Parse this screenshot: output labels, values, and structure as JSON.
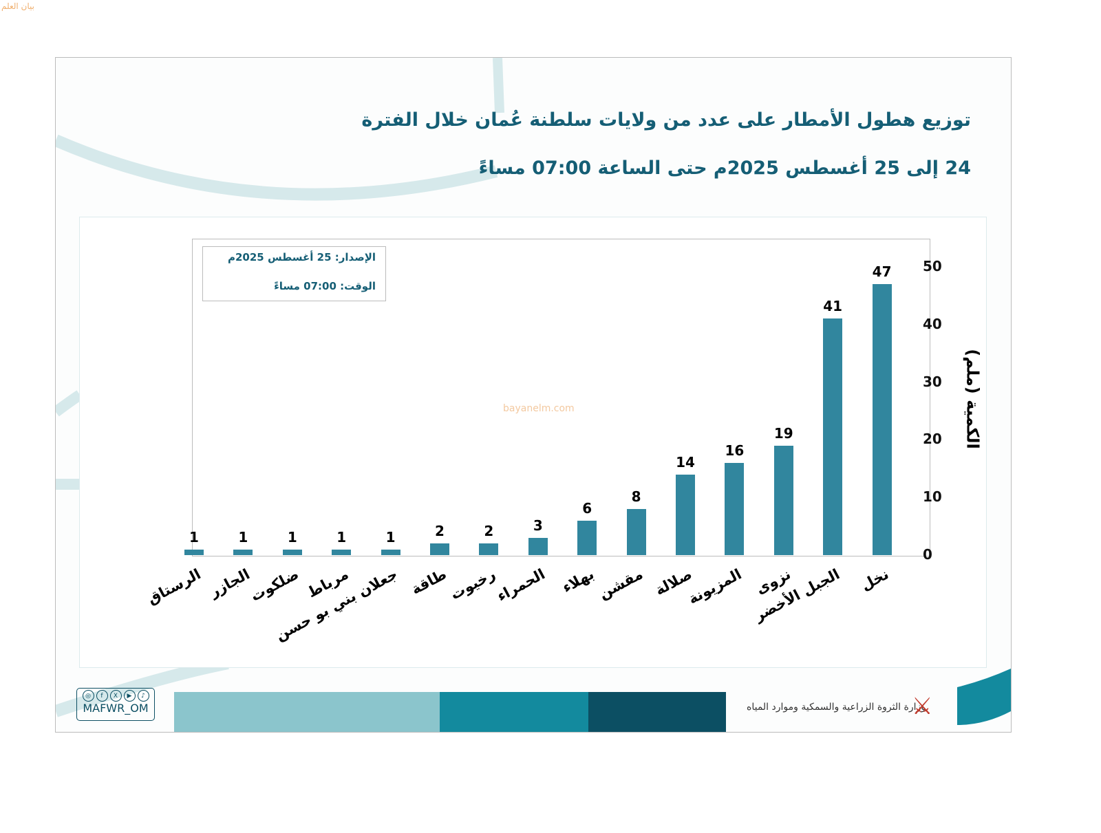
{
  "watermark": "bayanelm.com",
  "logo_text": "بيان العلم",
  "title_line1": "توزيع هطول الأمطار على عدد من ولايات سلطنة عُمان خلال الفترة",
  "title_line2": "24 إلى 25 أغسطس 2025م حتى الساعة 07:00 مساءً",
  "info": {
    "issue": "الإصدار: 25 أغسطس 2025م",
    "time": "الوقت:  07:00 مساءً"
  },
  "footer": {
    "ministry": "وزارة الثروة الزراعية والسمكية وموارد المياه",
    "handle": "MAFWR_OM",
    "social_icons": [
      "instagram-icon",
      "facebook-icon",
      "x-icon",
      "youtube-icon",
      "tiktok-icon"
    ]
  },
  "colors": {
    "bar": "#31869e",
    "title": "#155e75"
  },
  "chart_data": {
    "type": "bar",
    "categories": [
      "الرستاق",
      "الجازر",
      "ضلكوت",
      "مرباط",
      "جعلان بني بو حسن",
      "طاقة",
      "رخيوت",
      "الحمراء",
      "بهلاء",
      "مقشن",
      "صلالة",
      "المزيونة",
      "نزوى",
      "الجبل الأخضر",
      "نخل"
    ],
    "values": [
      1,
      1,
      1,
      1,
      1,
      2,
      2,
      3,
      6,
      8,
      14,
      16,
      19,
      41,
      47
    ],
    "ylabel": "الكمية (ملم)",
    "yaxis_position": "right",
    "ylim": [
      0,
      50
    ],
    "yticks": [
      0,
      10,
      20,
      30,
      40,
      50
    ],
    "grid": false,
    "data_labels": true
  }
}
